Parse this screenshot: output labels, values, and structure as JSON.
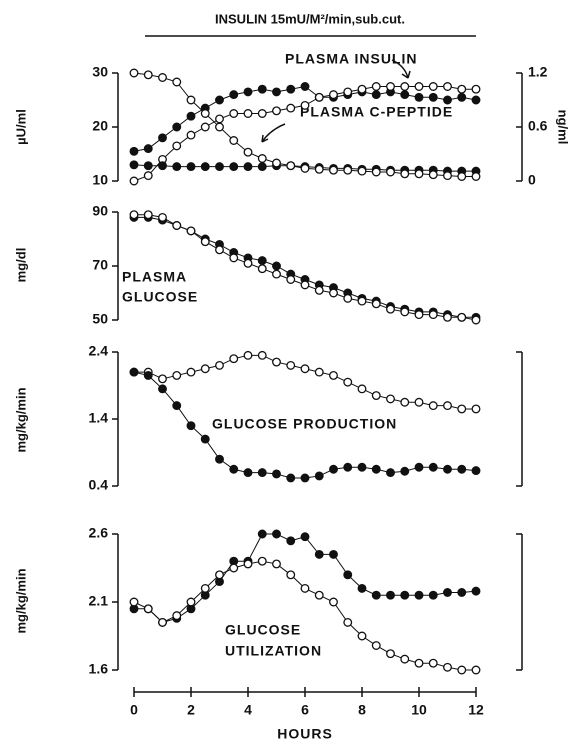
{
  "chart_data": [
    {
      "type": "line",
      "title": "INSULIN   15mU/M²/min,sub.cut.",
      "ylabel": "µU/ml",
      "y2label": "ng/ml",
      "annotations": [
        "PLASMA INSULIN",
        "PLASMA C-PEPTIDE"
      ],
      "x": [
        0,
        0.5,
        1,
        1.5,
        2,
        2.5,
        3,
        3.5,
        4,
        4.5,
        5,
        5.5,
        6,
        6.5,
        7,
        7.5,
        8,
        8.5,
        9,
        9.5,
        10,
        10.5,
        11,
        11.5,
        12
      ],
      "xlim": [
        0,
        12
      ],
      "ylim": [
        10,
        30
      ],
      "yticks": [
        10,
        20,
        30
      ],
      "y2lim": [
        0,
        1.2
      ],
      "y2ticks": [
        0,
        0.6,
        1.2
      ],
      "series": [
        {
          "marker": "filled",
          "color": "#111111",
          "values": [
            15.5,
            16,
            18,
            20,
            22,
            23.5,
            25,
            26,
            26.5,
            27,
            26.5,
            27,
            27.5,
            25.5,
            25.5,
            26,
            26.5,
            26,
            26.5,
            26,
            25.5,
            25.5,
            25,
            25.5,
            25
          ]
        },
        {
          "marker": "open",
          "color": "#111111",
          "values": [
            10,
            11,
            14,
            16.5,
            18.5,
            20,
            21.5,
            22.5,
            22.5,
            22.5,
            23,
            23.5,
            24,
            25.5,
            26,
            26.5,
            27,
            27.5,
            27.5,
            27.5,
            27.5,
            27.5,
            27.5,
            27,
            27
          ]
        },
        {
          "marker": "filled",
          "color": "#111111",
          "axis": "y2",
          "values": [
            0.18,
            0.17,
            0.17,
            0.16,
            0.16,
            0.16,
            0.16,
            0.16,
            0.16,
            0.16,
            0.17,
            0.17,
            0.16,
            0.15,
            0.14,
            0.14,
            0.13,
            0.13,
            0.12,
            0.12,
            0.12,
            0.12,
            0.11,
            0.11,
            0.11
          ]
        },
        {
          "marker": "open",
          "color": "#111111",
          "axis": "y2",
          "values": [
            1.2,
            1.18,
            1.15,
            1.1,
            0.9,
            0.75,
            0.6,
            0.45,
            0.32,
            0.25,
            0.2,
            0.17,
            0.14,
            0.13,
            0.12,
            0.12,
            0.11,
            0.1,
            0.1,
            0.08,
            0.08,
            0.07,
            0.06,
            0.05,
            0.05
          ]
        }
      ]
    },
    {
      "type": "line",
      "ylabel": "mg/dl",
      "annotations": [
        "PLASMA",
        "GLUCOSE"
      ],
      "x": [
        0,
        0.5,
        1,
        1.5,
        2,
        2.5,
        3,
        3.5,
        4,
        4.5,
        5,
        5.5,
        6,
        6.5,
        7,
        7.5,
        8,
        8.5,
        9,
        9.5,
        10,
        10.5,
        11,
        11.5,
        12
      ],
      "xlim": [
        0,
        12
      ],
      "ylim": [
        50,
        90
      ],
      "yticks": [
        50,
        70,
        90
      ],
      "series": [
        {
          "marker": "filled",
          "color": "#111111",
          "values": [
            88,
            88,
            87,
            85,
            83,
            80,
            78,
            75,
            73,
            72,
            70,
            67,
            65,
            63,
            62,
            60,
            58,
            57,
            55,
            54,
            53,
            53,
            52,
            51,
            51
          ]
        },
        {
          "marker": "open",
          "color": "#111111",
          "values": [
            89,
            89,
            88,
            85,
            83,
            79,
            76,
            73,
            71,
            69,
            67,
            65,
            63,
            61,
            60,
            58,
            57,
            56,
            54,
            53,
            52,
            52,
            51,
            51,
            50
          ]
        }
      ]
    },
    {
      "type": "line",
      "ylabel": "mg/kg/min",
      "annotations": [
        "GLUCOSE PRODUCTION"
      ],
      "x": [
        0,
        0.5,
        1,
        1.5,
        2,
        2.5,
        3,
        3.5,
        4,
        4.5,
        5,
        5.5,
        6,
        6.5,
        7,
        7.5,
        8,
        8.5,
        9,
        9.5,
        10,
        10.5,
        11,
        11.5,
        12
      ],
      "xlim": [
        0,
        12
      ],
      "ylim": [
        0.4,
        2.4
      ],
      "yticks": [
        0.4,
        1.4,
        2.4
      ],
      "series": [
        {
          "marker": "open",
          "color": "#111111",
          "values": [
            2.1,
            2.1,
            2.0,
            2.05,
            2.1,
            2.15,
            2.2,
            2.3,
            2.35,
            2.35,
            2.25,
            2.2,
            2.15,
            2.1,
            2.05,
            1.95,
            1.85,
            1.75,
            1.7,
            1.65,
            1.65,
            1.6,
            1.6,
            1.55,
            1.55
          ]
        },
        {
          "marker": "filled",
          "color": "#111111",
          "values": [
            2.1,
            2.05,
            1.85,
            1.6,
            1.3,
            1.1,
            0.8,
            0.65,
            0.6,
            0.6,
            0.58,
            0.52,
            0.52,
            0.55,
            0.65,
            0.68,
            0.68,
            0.65,
            0.6,
            0.62,
            0.68,
            0.68,
            0.65,
            0.65,
            0.63
          ]
        }
      ]
    },
    {
      "type": "line",
      "ylabel": "mg/kg/min",
      "annotations": [
        "GLUCOSE",
        "UTILIZATION"
      ],
      "xlabel": "HOURS",
      "x": [
        0,
        0.5,
        1,
        1.5,
        2,
        2.5,
        3,
        3.5,
        4,
        4.5,
        5,
        5.5,
        6,
        6.5,
        7,
        7.5,
        8,
        8.5,
        9,
        9.5,
        10,
        10.5,
        11,
        11.5,
        12
      ],
      "xlim": [
        0,
        12
      ],
      "xticks": [
        0,
        2,
        4,
        6,
        8,
        10,
        12
      ],
      "ylim": [
        1.6,
        2.6
      ],
      "yticks": [
        1.6,
        2.1,
        2.6
      ],
      "series": [
        {
          "marker": "filled",
          "color": "#111111",
          "values": [
            2.05,
            2.05,
            1.95,
            1.98,
            2.05,
            2.15,
            2.25,
            2.4,
            2.4,
            2.6,
            2.6,
            2.55,
            2.58,
            2.45,
            2.45,
            2.3,
            2.2,
            2.15,
            2.15,
            2.15,
            2.15,
            2.15,
            2.17,
            2.17,
            2.18
          ]
        },
        {
          "marker": "open",
          "color": "#111111",
          "values": [
            2.1,
            2.05,
            1.95,
            2.0,
            2.1,
            2.2,
            2.3,
            2.35,
            2.38,
            2.4,
            2.38,
            2.3,
            2.2,
            2.15,
            2.1,
            1.95,
            1.85,
            1.78,
            1.72,
            1.68,
            1.65,
            1.65,
            1.62,
            1.6,
            1.6
          ]
        }
      ]
    }
  ]
}
